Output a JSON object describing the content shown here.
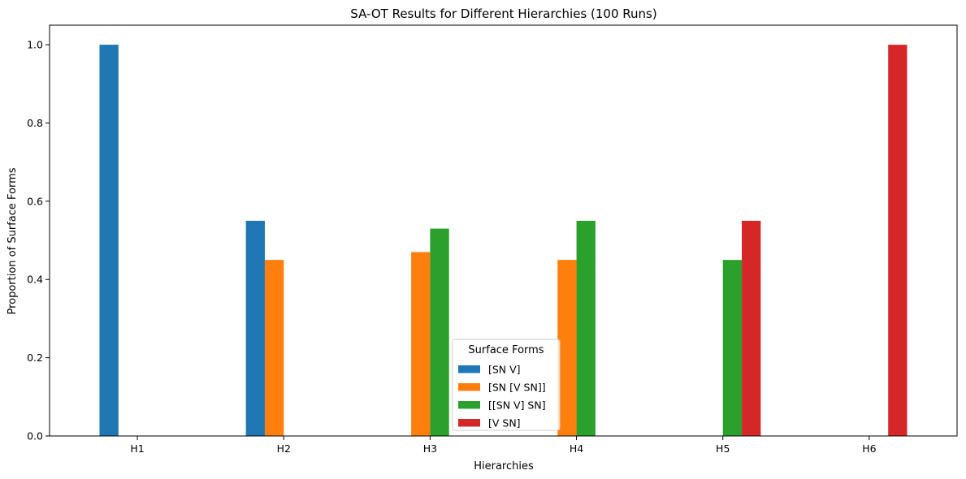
{
  "chart_data": {
    "type": "bar",
    "title": "SA-OT Results for Different Hierarchies (100 Runs)",
    "xlabel": "Hierarchies",
    "ylabel": "Proportion of Surface Forms",
    "categories": [
      "H1",
      "H2",
      "H3",
      "H4",
      "H5",
      "H6"
    ],
    "ylim": [
      0,
      1.05
    ],
    "yticks": [
      "0.0",
      "0.2",
      "0.4",
      "0.6",
      "0.8",
      "1.0"
    ],
    "grid": false,
    "legend": {
      "title": "Surface Forms",
      "placement": "bottom-center"
    },
    "series": [
      {
        "name": "[SN V]",
        "color": "#1f77b4",
        "values": [
          1.0,
          0.55,
          0,
          0,
          0,
          0
        ]
      },
      {
        "name": "[SN [V SN]]",
        "color": "#ff7f0e",
        "values": [
          0,
          0.45,
          0.47,
          0.45,
          0,
          0
        ]
      },
      {
        "name": "[[SN V] SN]",
        "color": "#2ca02c",
        "values": [
          0,
          0,
          0.53,
          0.55,
          0.45,
          0
        ]
      },
      {
        "name": "[V SN]",
        "color": "#d62728",
        "values": [
          0,
          0,
          0,
          0,
          0.55,
          1.0
        ]
      }
    ]
  }
}
